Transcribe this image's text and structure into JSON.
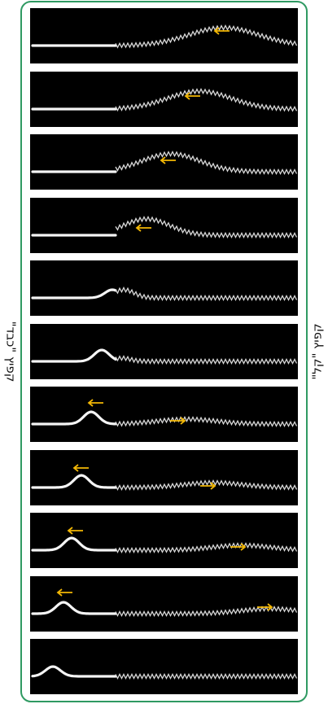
{
  "labels": {
    "left": "קפיץ \"כבד\"",
    "right": "קפיץ \"קל\""
  }
}
